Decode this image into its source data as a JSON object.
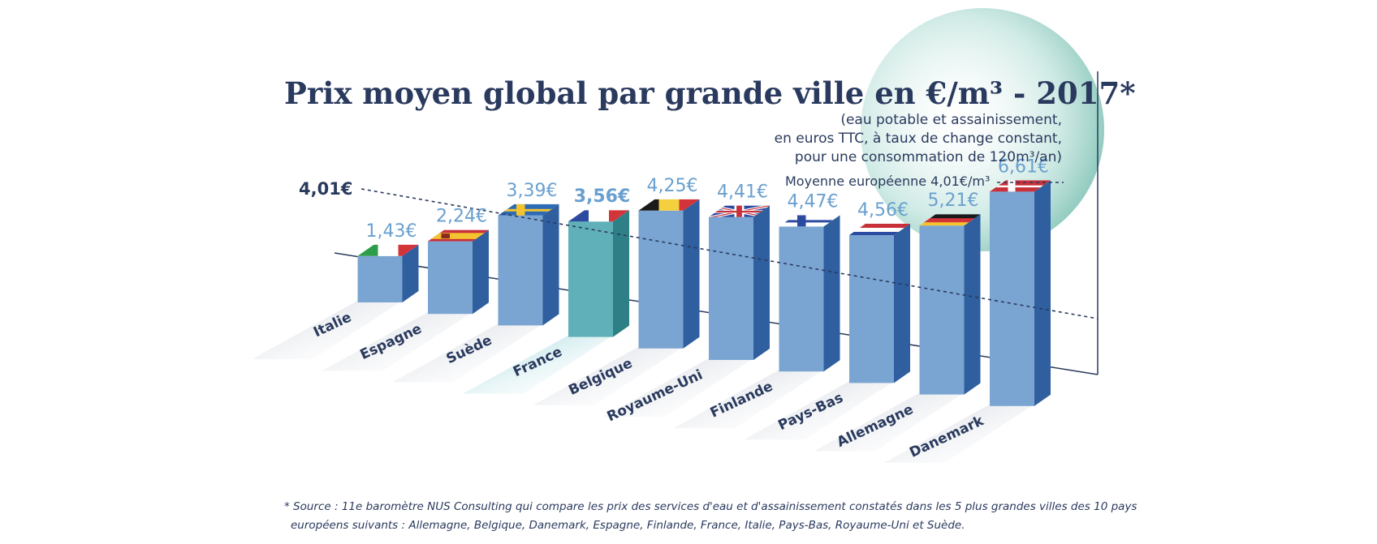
{
  "title": "Prix moyen global par grande ville en €/m³ - 2017*",
  "subtitle_lines": [
    "(eau potable et assainissement,",
    "en euros TTC, à taux de change constant,",
    "pour une consommation de 120m³/an)"
  ],
  "average_legend": "Moyenne européenne 4,01€/m³",
  "average_label": "4,01€",
  "footnote_lines": [
    "* Source : 11e baromètre NUS Consulting qui compare les prix des services d'eau et d'assainissement constatés dans les 5 plus grandes villes des 10 pays",
    "européens suivants : Allemagne, Belgique, Danemark, Espagne, Finlande, France, Italie, Pays-Bas, Royaume-Uni et Suède."
  ],
  "colors": {
    "title": "#2a3a5e",
    "bar_front": "#7aa5d2",
    "bar_side": "#2f5f9e",
    "bar_top": "#a9c6e6",
    "highlight_front": "#5fb0b8",
    "highlight_side": "#2f7f86",
    "value_label": "#6aa0cf",
    "circle": "#9fd1c8"
  },
  "chart_data": {
    "type": "bar",
    "title": "Prix moyen global par grande ville en €/m³ - 2017*",
    "categories": [
      "Italie",
      "Espagne",
      "Suède",
      "France",
      "Belgique",
      "Royaume-Uni",
      "Finlande",
      "Pays-Bas",
      "Allemagne",
      "Danemark"
    ],
    "values": [
      1.43,
      2.24,
      3.39,
      3.56,
      4.25,
      4.41,
      4.47,
      4.56,
      5.21,
      6.61
    ],
    "value_labels": [
      "1,43€",
      "2,24€",
      "3,39€",
      "3,56€",
      "4,25€",
      "4,41€",
      "4,47€",
      "4,56€",
      "5,21€",
      "6,61€"
    ],
    "flags": [
      "italy-flag",
      "spain-flag",
      "sweden-flag",
      "france-flag",
      "belgium-flag",
      "uk-flag",
      "finland-flag",
      "netherlands-flag",
      "germany-flag",
      "denmark-flag"
    ],
    "highlight": "France",
    "average": 4.01,
    "grid": false,
    "legend": "none"
  }
}
